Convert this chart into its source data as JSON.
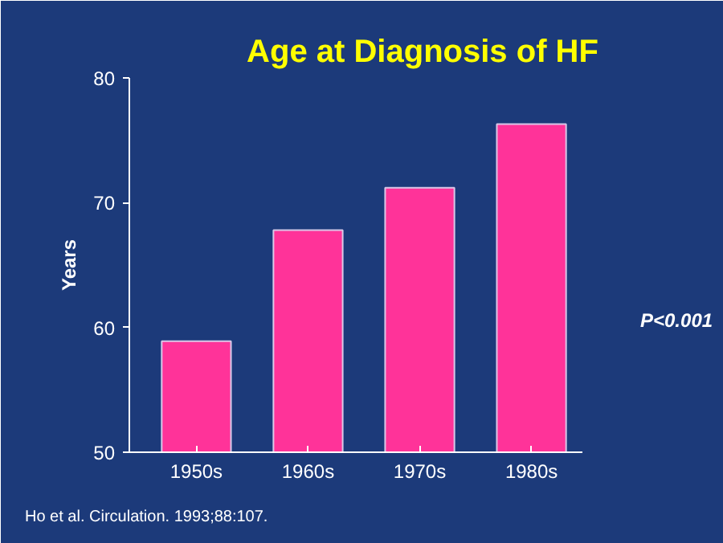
{
  "chart_data": {
    "type": "bar",
    "title": "Age at Diagnosis of HF",
    "ylabel": "Years",
    "categories": [
      "1950s",
      "1960s",
      "1970s",
      "1980s"
    ],
    "values": [
      58.9,
      67.8,
      71.2,
      76.3
    ],
    "color": "#ff3399",
    "ylim": [
      50,
      80
    ],
    "yticks": [
      50,
      60,
      70,
      80
    ],
    "grid": false,
    "annotations": [
      "P<0.001",
      "Ho et al. Circulation. 1993;88:107."
    ]
  }
}
